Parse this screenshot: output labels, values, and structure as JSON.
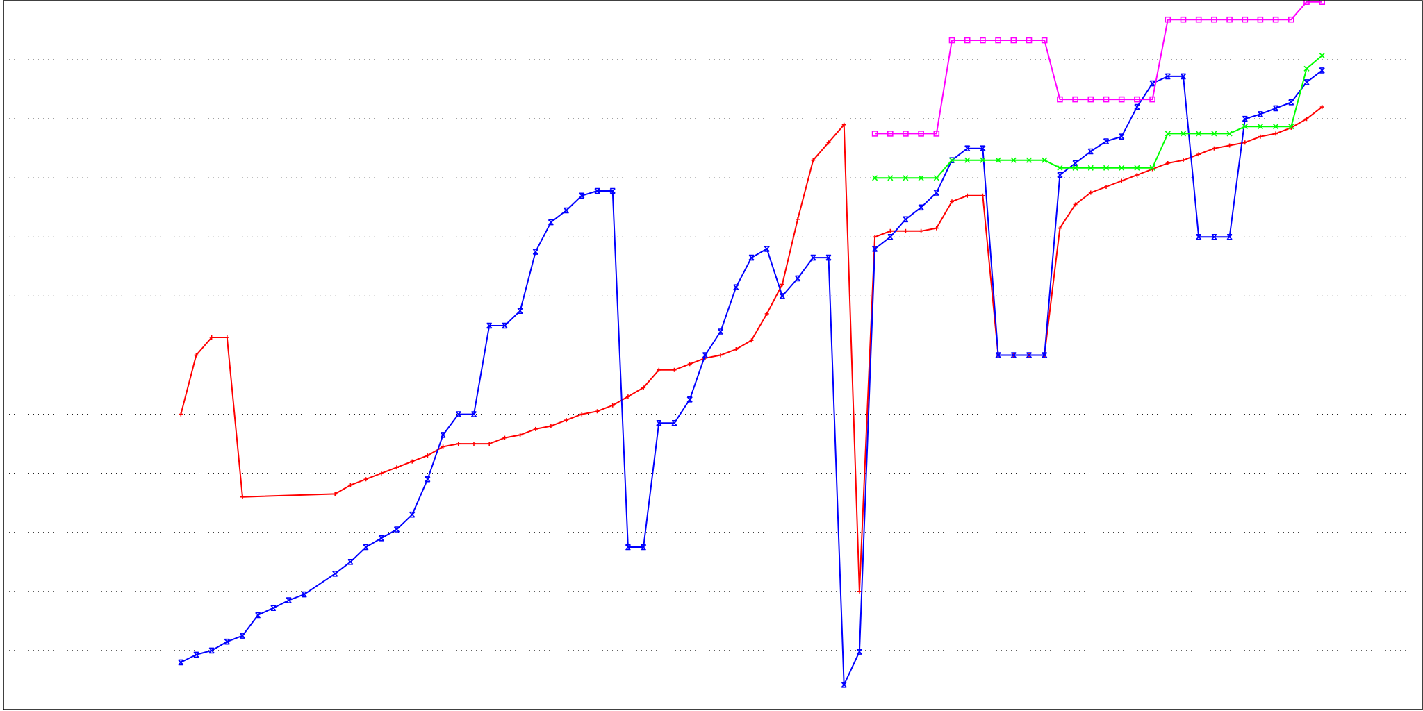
{
  "chart_data": {
    "type": "line",
    "title": "",
    "xlabel": "",
    "ylabel": "",
    "xlim": [
      0,
      92
    ],
    "ylim": [
      0,
      12
    ],
    "grid": {
      "y": true,
      "x": false
    },
    "y_gridlines": [
      1,
      2,
      3,
      4,
      5,
      6,
      7,
      8,
      9,
      10,
      11
    ],
    "series": [
      {
        "color": "#ff0000",
        "marker": "plus",
        "points": [
          [
            11.5,
            5.0
          ],
          [
            12.5,
            6.0
          ],
          [
            13.5,
            6.3
          ],
          [
            14.5,
            6.3
          ],
          [
            15.5,
            3.6
          ],
          [
            21.5,
            3.65
          ],
          [
            22.5,
            3.8
          ],
          [
            23.5,
            3.9
          ],
          [
            24.5,
            4.0
          ],
          [
            25.5,
            4.1
          ],
          [
            26.5,
            4.2
          ],
          [
            27.5,
            4.3
          ],
          [
            28.5,
            4.45
          ],
          [
            29.5,
            4.5
          ],
          [
            30.5,
            4.5
          ],
          [
            31.5,
            4.5
          ],
          [
            32.5,
            4.6
          ],
          [
            33.5,
            4.65
          ],
          [
            34.5,
            4.75
          ],
          [
            35.5,
            4.8
          ],
          [
            36.5,
            4.9
          ],
          [
            37.5,
            5.0
          ],
          [
            38.5,
            5.05
          ],
          [
            39.5,
            5.15
          ],
          [
            40.5,
            5.3
          ],
          [
            41.5,
            5.45
          ],
          [
            42.5,
            5.75
          ],
          [
            43.5,
            5.75
          ],
          [
            44.5,
            5.85
          ],
          [
            45.5,
            5.95
          ],
          [
            46.5,
            6.0
          ],
          [
            47.5,
            6.1
          ],
          [
            48.5,
            6.25
          ],
          [
            49.5,
            6.7
          ],
          [
            50.5,
            7.2
          ],
          [
            51.5,
            8.3
          ],
          [
            52.5,
            9.3
          ],
          [
            53.5,
            9.6
          ],
          [
            54.5,
            9.9
          ],
          [
            55.5,
            2.0
          ],
          [
            56.5,
            8.0
          ],
          [
            57.5,
            8.1
          ],
          [
            58.5,
            8.1
          ],
          [
            59.5,
            8.1
          ],
          [
            60.5,
            8.15
          ],
          [
            61.5,
            8.6
          ],
          [
            62.5,
            8.7
          ],
          [
            63.5,
            8.7
          ],
          [
            64.5,
            6.0
          ],
          [
            65.5,
            6.0
          ],
          [
            66.5,
            6.0
          ],
          [
            67.5,
            6.0
          ],
          [
            68.5,
            8.15
          ],
          [
            69.5,
            8.55
          ],
          [
            70.5,
            8.75
          ],
          [
            71.5,
            8.85
          ],
          [
            72.5,
            8.95
          ],
          [
            73.5,
            9.05
          ],
          [
            74.5,
            9.15
          ],
          [
            75.5,
            9.25
          ],
          [
            76.5,
            9.3
          ],
          [
            77.5,
            9.4
          ],
          [
            78.5,
            9.5
          ],
          [
            79.5,
            9.55
          ],
          [
            80.5,
            9.6
          ],
          [
            81.5,
            9.7
          ],
          [
            82.5,
            9.75
          ],
          [
            83.5,
            9.85
          ],
          [
            84.5,
            10.0
          ],
          [
            85.5,
            10.2
          ]
        ]
      },
      {
        "color": "#0000ff",
        "marker": "x-square",
        "points": [
          [
            11.5,
            0.8
          ],
          [
            12.5,
            0.93
          ],
          [
            13.5,
            1.0
          ],
          [
            14.5,
            1.15
          ],
          [
            15.5,
            1.25
          ],
          [
            16.5,
            1.6
          ],
          [
            17.5,
            1.72
          ],
          [
            18.5,
            1.85
          ],
          [
            19.5,
            1.95
          ],
          [
            21.5,
            2.3
          ],
          [
            22.5,
            2.5
          ],
          [
            23.5,
            2.75
          ],
          [
            24.5,
            2.9
          ],
          [
            25.5,
            3.05
          ],
          [
            26.5,
            3.3
          ],
          [
            27.5,
            3.9
          ],
          [
            28.5,
            4.65
          ],
          [
            29.5,
            5.0
          ],
          [
            30.5,
            5.0
          ],
          [
            31.5,
            6.5
          ],
          [
            32.5,
            6.5
          ],
          [
            33.5,
            6.75
          ],
          [
            34.5,
            7.75
          ],
          [
            35.5,
            8.25
          ],
          [
            36.5,
            8.45
          ],
          [
            37.5,
            8.7
          ],
          [
            38.5,
            8.78
          ],
          [
            39.5,
            8.78
          ],
          [
            40.5,
            2.75
          ],
          [
            41.5,
            2.75
          ],
          [
            42.5,
            4.85
          ],
          [
            43.5,
            4.85
          ],
          [
            44.5,
            5.25
          ],
          [
            45.5,
            6.0
          ],
          [
            46.5,
            6.4
          ],
          [
            47.5,
            7.15
          ],
          [
            48.5,
            7.65
          ],
          [
            49.5,
            7.8
          ],
          [
            50.5,
            7.0
          ],
          [
            51.5,
            7.3
          ],
          [
            52.5,
            7.65
          ],
          [
            53.5,
            7.65
          ],
          [
            54.5,
            0.42
          ],
          [
            55.5,
            0.98
          ],
          [
            56.5,
            7.8
          ],
          [
            57.5,
            8.0
          ],
          [
            58.5,
            8.3
          ],
          [
            59.5,
            8.5
          ],
          [
            60.5,
            8.75
          ],
          [
            61.5,
            9.3
          ],
          [
            62.5,
            9.5
          ],
          [
            63.5,
            9.5
          ],
          [
            64.5,
            6.0
          ],
          [
            65.5,
            6.0
          ],
          [
            66.5,
            6.0
          ],
          [
            67.5,
            6.0
          ],
          [
            68.5,
            9.05
          ],
          [
            69.5,
            9.25
          ],
          [
            70.5,
            9.45
          ],
          [
            71.5,
            9.62
          ],
          [
            72.5,
            9.7
          ],
          [
            73.5,
            10.2
          ],
          [
            74.5,
            10.6
          ],
          [
            75.5,
            10.72
          ],
          [
            76.5,
            10.72
          ],
          [
            77.5,
            8.0
          ],
          [
            78.5,
            8.0
          ],
          [
            79.5,
            8.0
          ],
          [
            80.5,
            10.0
          ],
          [
            81.5,
            10.08
          ],
          [
            82.5,
            10.18
          ],
          [
            83.5,
            10.28
          ],
          [
            84.5,
            10.62
          ],
          [
            85.5,
            10.82
          ]
        ]
      },
      {
        "color": "#00ff00",
        "marker": "x",
        "points": [
          [
            56.5,
            9.0
          ],
          [
            57.5,
            9.0
          ],
          [
            58.5,
            9.0
          ],
          [
            59.5,
            9.0
          ],
          [
            60.5,
            9.0
          ],
          [
            61.5,
            9.3
          ],
          [
            62.5,
            9.3
          ],
          [
            63.5,
            9.3
          ],
          [
            64.5,
            9.3
          ],
          [
            65.5,
            9.3
          ],
          [
            66.5,
            9.3
          ],
          [
            67.5,
            9.3
          ],
          [
            68.5,
            9.17
          ],
          [
            69.5,
            9.17
          ],
          [
            70.5,
            9.17
          ],
          [
            71.5,
            9.17
          ],
          [
            72.5,
            9.17
          ],
          [
            73.5,
            9.17
          ],
          [
            74.5,
            9.17
          ],
          [
            75.5,
            9.75
          ],
          [
            76.5,
            9.75
          ],
          [
            77.5,
            9.75
          ],
          [
            78.5,
            9.75
          ],
          [
            79.5,
            9.75
          ],
          [
            80.5,
            9.87
          ],
          [
            81.5,
            9.87
          ],
          [
            82.5,
            9.87
          ],
          [
            83.5,
            9.87
          ],
          [
            84.5,
            10.85
          ],
          [
            85.5,
            11.07
          ]
        ]
      },
      {
        "color": "#ff00ff",
        "marker": "square",
        "points": [
          [
            56.5,
            9.75
          ],
          [
            57.5,
            9.75
          ],
          [
            58.5,
            9.75
          ],
          [
            59.5,
            9.75
          ],
          [
            60.5,
            9.75
          ],
          [
            61.5,
            11.33
          ],
          [
            62.5,
            11.33
          ],
          [
            63.5,
            11.33
          ],
          [
            64.5,
            11.33
          ],
          [
            65.5,
            11.33
          ],
          [
            66.5,
            11.33
          ],
          [
            67.5,
            11.33
          ],
          [
            68.5,
            10.33
          ],
          [
            69.5,
            10.33
          ],
          [
            70.5,
            10.33
          ],
          [
            71.5,
            10.33
          ],
          [
            72.5,
            10.33
          ],
          [
            73.5,
            10.33
          ],
          [
            74.5,
            10.33
          ],
          [
            75.5,
            11.68
          ],
          [
            76.5,
            11.68
          ],
          [
            77.5,
            11.68
          ],
          [
            78.5,
            11.68
          ],
          [
            79.5,
            11.68
          ],
          [
            80.5,
            11.68
          ],
          [
            81.5,
            11.68
          ],
          [
            82.5,
            11.68
          ],
          [
            83.5,
            11.68
          ],
          [
            84.5,
            11.98
          ],
          [
            85.5,
            11.98
          ]
        ]
      }
    ]
  }
}
